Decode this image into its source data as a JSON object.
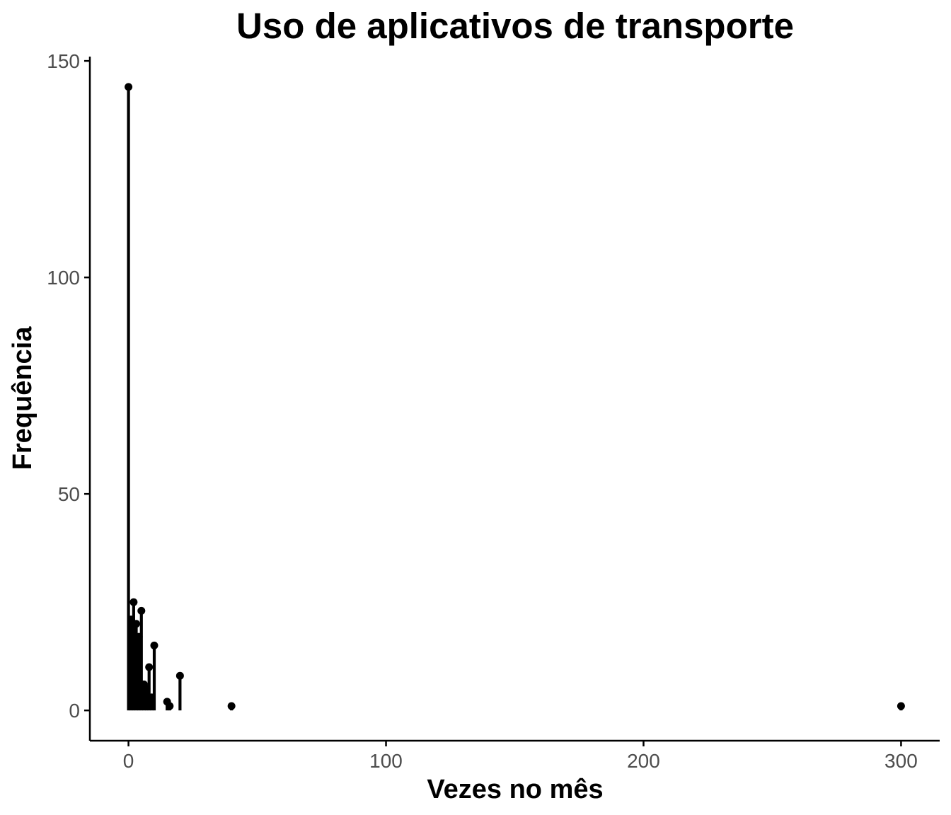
{
  "chart_data": {
    "type": "bar",
    "title": "Uso de aplicativos de transporte",
    "xlabel": "Vezes no mês",
    "ylabel": "Frequência",
    "xlim": [
      -15,
      315
    ],
    "ylim": [
      -7,
      151
    ],
    "x_ticks": [
      0,
      100,
      200,
      300
    ],
    "y_ticks": [
      0,
      50,
      100,
      150
    ],
    "grid": false,
    "legend": "none",
    "bar_color": "#000000",
    "x": [
      0,
      1,
      2,
      3,
      4,
      5,
      6,
      7,
      8,
      9,
      10,
      15,
      16,
      20,
      40,
      300
    ],
    "values": [
      144,
      21,
      25,
      20,
      17,
      23,
      6,
      5,
      10,
      3,
      15,
      2,
      1,
      8,
      1,
      1
    ]
  }
}
